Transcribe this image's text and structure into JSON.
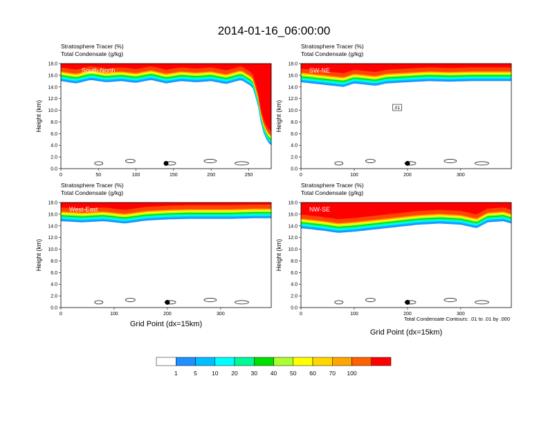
{
  "title": "2014-01-16_06:00:00",
  "yaxis_label": "Height (km)",
  "xaxis_label": "Grid Point (dx=15km)",
  "contour_note": "Total Condensate Contours: .01 to .01 by .000",
  "colorbar": {
    "labels": [
      "1",
      "5",
      "10",
      "20",
      "30",
      "40",
      "50",
      "60",
      "70",
      "100"
    ],
    "colors": [
      "#ffffff",
      "#1e90ff",
      "#00bfff",
      "#00ffff",
      "#00fa9a",
      "#00e000",
      "#adff2f",
      "#ffff00",
      "#ffd700",
      "#ffa500",
      "#ff6000",
      "#ff0000"
    ]
  },
  "chart_data": [
    {
      "type": "heatmap",
      "panel": "South-North",
      "header_lines": [
        "Stratosphere Tracer   (%)",
        "Total Condensate   (g/kg)"
      ],
      "xlim": [
        0,
        280
      ],
      "ylim": [
        0,
        18
      ],
      "xticks": [
        "0",
        "50",
        "100",
        "150",
        "200",
        "250"
      ],
      "yticks": [
        "0.0",
        "2.0",
        "4.0",
        "6.0",
        "8.0",
        "10.0",
        "12.0",
        "14.0",
        "16.0",
        "18.0"
      ],
      "marker_x": 140,
      "tracer_base_km": [
        [
          0,
          15.0
        ],
        [
          20,
          14.6
        ],
        [
          40,
          15.2
        ],
        [
          60,
          14.8
        ],
        [
          80,
          15.0
        ],
        [
          100,
          14.7
        ],
        [
          120,
          15.2
        ],
        [
          140,
          14.6
        ],
        [
          160,
          15.0
        ],
        [
          180,
          14.8
        ],
        [
          200,
          15.0
        ],
        [
          220,
          14.5
        ],
        [
          240,
          15.2
        ],
        [
          255,
          14.0
        ],
        [
          262,
          11.0
        ],
        [
          266,
          8.0
        ],
        [
          270,
          6.0
        ],
        [
          275,
          4.6
        ],
        [
          280,
          4.0
        ]
      ]
    },
    {
      "type": "heatmap",
      "panel": "SW-NE",
      "header_lines": [
        "Stratosphere Tracer   (%)",
        "Total Condensate   (g/kg)"
      ],
      "xlim": [
        0,
        395
      ],
      "ylim": [
        0,
        18
      ],
      "xticks": [
        "0",
        "100",
        "200",
        "300"
      ],
      "yticks": [
        "0.0",
        "2.0",
        "4.0",
        "6.0",
        "8.0",
        "10.0",
        "12.0",
        "14.0",
        "16.0",
        "18.0"
      ],
      "marker_x": 200,
      "contour_label": ".01",
      "tracer_base_km": [
        [
          0,
          14.8
        ],
        [
          40,
          14.4
        ],
        [
          80,
          14.0
        ],
        [
          100,
          14.6
        ],
        [
          140,
          14.2
        ],
        [
          160,
          14.6
        ],
        [
          200,
          14.8
        ],
        [
          240,
          15.0
        ],
        [
          280,
          14.9
        ],
        [
          320,
          15.0
        ],
        [
          360,
          15.0
        ],
        [
          395,
          15.0
        ]
      ]
    },
    {
      "type": "heatmap",
      "panel": "West-East",
      "header_lines": [
        "Stratosphere Tracer   (%)",
        "Total Condensate   (g/kg)"
      ],
      "xlim": [
        0,
        395
      ],
      "ylim": [
        0,
        18
      ],
      "xticks": [
        "0",
        "100",
        "200",
        "300"
      ],
      "yticks": [
        "0.0",
        "2.0",
        "4.0",
        "6.0",
        "8.0",
        "10.0",
        "12.0",
        "14.0",
        "16.0",
        "18.0"
      ],
      "marker_x": 200,
      "tracer_base_km": [
        [
          0,
          14.8
        ],
        [
          40,
          14.6
        ],
        [
          80,
          14.8
        ],
        [
          120,
          14.4
        ],
        [
          160,
          14.9
        ],
        [
          200,
          15.1
        ],
        [
          240,
          15.2
        ],
        [
          280,
          15.2
        ],
        [
          320,
          15.2
        ],
        [
          360,
          15.3
        ],
        [
          395,
          15.3
        ]
      ]
    },
    {
      "type": "heatmap",
      "panel": "NW-SE",
      "header_lines": [
        "Stratosphere Tracer   (%)",
        "Total Condensate   (g/kg)"
      ],
      "xlim": [
        0,
        395
      ],
      "ylim": [
        0,
        18
      ],
      "xticks": [
        "0",
        "100",
        "200",
        "300"
      ],
      "yticks": [
        "0.0",
        "2.0",
        "4.0",
        "6.0",
        "8.0",
        "10.0",
        "12.0",
        "14.0",
        "16.0",
        "18.0"
      ],
      "marker_x": 200,
      "tracer_base_km": [
        [
          0,
          13.6
        ],
        [
          40,
          13.2
        ],
        [
          70,
          12.8
        ],
        [
          100,
          13.0
        ],
        [
          140,
          13.4
        ],
        [
          180,
          13.8
        ],
        [
          220,
          14.2
        ],
        [
          260,
          14.4
        ],
        [
          300,
          14.2
        ],
        [
          330,
          13.6
        ],
        [
          350,
          14.6
        ],
        [
          380,
          14.8
        ],
        [
          395,
          14.4
        ]
      ]
    }
  ]
}
